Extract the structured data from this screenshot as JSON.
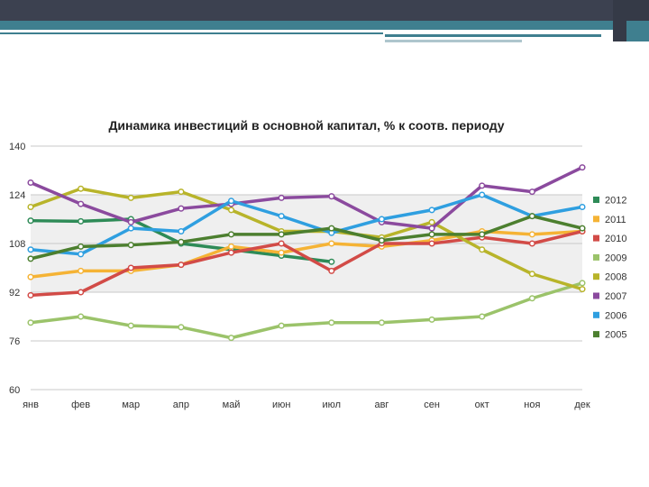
{
  "chart_data": {
    "type": "line",
    "title": "Динамика инвестиций в основной капитал, % к соотв. периоду",
    "xlabel": "",
    "ylabel": "",
    "ylim": [
      60,
      140
    ],
    "yticks": [
      60,
      76,
      92,
      108,
      124,
      140
    ],
    "categories": [
      "янв",
      "фев",
      "мар",
      "апр",
      "май",
      "июн",
      "июл",
      "авг",
      "сен",
      "окт",
      "ноя",
      "дек"
    ],
    "grid": true,
    "legend_position": "right",
    "series": [
      {
        "name": "2012",
        "color": "#2e8b57",
        "values": [
          115.5,
          115.3,
          116,
          108,
          106,
          104,
          102,
          null,
          null,
          null,
          null,
          null
        ]
      },
      {
        "name": "2011",
        "color": "#f5b335",
        "values": [
          97,
          99,
          99,
          101,
          107,
          105,
          108,
          107,
          109,
          112,
          111,
          112
        ]
      },
      {
        "name": "2010",
        "color": "#d24b47",
        "values": [
          91,
          92,
          100,
          101,
          105,
          108,
          99,
          108,
          108,
          110,
          108,
          112
        ]
      },
      {
        "name": "2009",
        "color": "#9bc36a",
        "values": [
          82,
          84,
          81,
          80.5,
          77,
          81,
          82,
          82,
          83,
          84,
          90,
          95
        ]
      },
      {
        "name": "2008",
        "color": "#b8b42a",
        "values": [
          120,
          126,
          123,
          125,
          119,
          112,
          112,
          110,
          115,
          106,
          98,
          93
        ]
      },
      {
        "name": "2007",
        "color": "#8b4a9e",
        "values": [
          128,
          121,
          115,
          119.5,
          121,
          123,
          123.5,
          115,
          113,
          127,
          125,
          133
        ]
      },
      {
        "name": "2006",
        "color": "#2f9fe0",
        "values": [
          106,
          104.5,
          113,
          112,
          122,
          117,
          111.5,
          116,
          119,
          124,
          117,
          120
        ]
      },
      {
        "name": "2005",
        "color": "#4c7f2f",
        "values": [
          103,
          107,
          107.5,
          108.5,
          111,
          111,
          113,
          109,
          111,
          111,
          117,
          113
        ]
      }
    ]
  }
}
